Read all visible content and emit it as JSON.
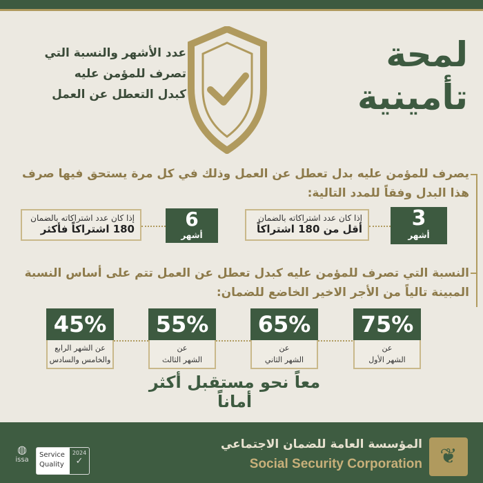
{
  "title": [
    "لمحة",
    "تأمينية"
  ],
  "subtitle": [
    "عدد الأشهر والنسبة التي",
    "تصرف للمؤمن عليه",
    "كبدل التعطل عن العمل"
  ],
  "paragraph1": "يصرف للمؤمن عليه بدل تعطل عن العمل وذلك في كل مرة يستحق فيها صرف هذا البدل وفقاً للمدد التالية:",
  "periods": [
    {
      "number": "3",
      "unit": "أشهر",
      "condition": "إذا كان عدد اشتراكاته بالضمان",
      "detail": "أقل من 180 اشتراكاً"
    },
    {
      "number": "6",
      "unit": "أشهر",
      "condition": "إذا كان عدد اشتراكاته بالضمان",
      "detail": "180 اشتراكاً فأكثر"
    }
  ],
  "paragraph2": "النسبة التي تصرف للمؤمن عليه كبدل تعطل عن العمل تتم على أساس النسبة المبينة تالياً من الأجر الاخير الخاضع للضمان:",
  "percentages": [
    {
      "value": "75%",
      "label1": "عن",
      "label2": "الشهر الأول"
    },
    {
      "value": "65%",
      "label1": "عن",
      "label2": "الشهر الثاني"
    },
    {
      "value": "55%",
      "label1": "عن",
      "label2": "الشهر الثالث"
    },
    {
      "value": "45%",
      "label1": "عن الشهر الرابع",
      "label2": "والخامس والسادس"
    }
  ],
  "slogan": "معاً نحو مستقبل أكثر أماناً",
  "footer": {
    "org_ar": "المؤسسة العامة للضمان الاجتماعي",
    "org_en": "Social Security Corporation",
    "badge_line1": "Service",
    "badge_line2": "Quality",
    "badge_year": "2024",
    "issa": "issa"
  },
  "colors": {
    "green": "#3d5a40",
    "gold": "#b09a5e",
    "background": "#ece9e1"
  }
}
